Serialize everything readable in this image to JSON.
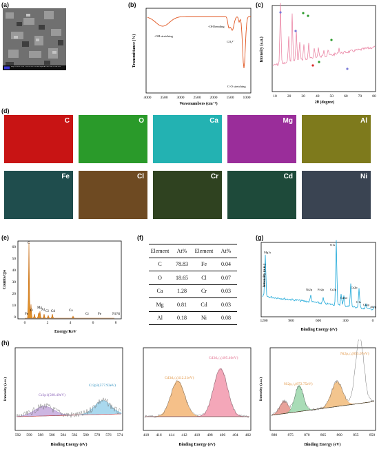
{
  "panels": {
    "a": "(a)",
    "b": "(b)",
    "c": "(c)",
    "d": "(d)",
    "e": "(e)",
    "f": "(f)",
    "g": "(g)",
    "h": "(h)"
  },
  "sem_caption": "Mag = 20.00 K X   EHT = 3.00 kV   WD = 6.8 mm   Signal A = SE2   Date: 30 Jan 2023",
  "ftir": {
    "xlabel": "Wavenumbers (cm⁻¹)",
    "ylabel": "Transmittance (%)",
    "ticks": [
      "4000",
      "3500",
      "3000",
      "2500",
      "2000",
      "1500",
      "1000"
    ],
    "ann_oh_stretch": "-OH stretching",
    "ann_oh_bend": "-OH bending",
    "ann_co3": "CO₃²⁻",
    "ann_co": "C-O stretching"
  },
  "xrd": {
    "xlabel": "2θ (degree)",
    "ylabel": "Intensity (a.u.)",
    "ticks": [
      "10",
      "20",
      "30",
      "40",
      "50",
      "60",
      "70",
      "80"
    ]
  },
  "maps": [
    {
      "label": "C",
      "color": "#c81414"
    },
    {
      "label": "O",
      "color": "#2a9a2a"
    },
    {
      "label": "Ca",
      "color": "#23b2b2"
    },
    {
      "label": "Mg",
      "color": "#9a2d9a"
    },
    {
      "label": "Al",
      "color": "#7e7a1c"
    },
    {
      "label": "Fe",
      "color": "#1f4d4d"
    },
    {
      "label": "Cl",
      "color": "#6e4a22"
    },
    {
      "label": "Cr",
      "color": "#2f4220"
    },
    {
      "label": "Cd",
      "color": "#1e4a3a"
    },
    {
      "label": "Ni",
      "color": "#3a4452"
    }
  ],
  "eds": {
    "xlabel": "Energy/KeV",
    "ylabel": "Counts/cps",
    "xticks": [
      "0",
      "2",
      "4",
      "6",
      "8"
    ],
    "yticks": [
      "0",
      "10",
      "20",
      "30",
      "40",
      "50",
      "60"
    ],
    "peaks": [
      "C",
      "O",
      "Fe",
      "Mg",
      "Al",
      "Cl",
      "Cd",
      "Ca",
      "Cr",
      "Fe",
      "Ni",
      "Ni"
    ]
  },
  "table": {
    "headers": [
      "Element",
      "At%",
      "Element",
      "At%"
    ],
    "rows": [
      [
        "C",
        "78.83",
        "Fe",
        "0.04"
      ],
      [
        "O",
        "18.65",
        "Cl",
        "0.07"
      ],
      [
        "Ca",
        "1.28",
        "Cr",
        "0.03"
      ],
      [
        "Mg",
        "0.81",
        "Cd",
        "0.03"
      ],
      [
        "Al",
        "0.18",
        "Ni",
        "0.08"
      ]
    ]
  },
  "xps_survey": {
    "xlabel": "Binding Energy (eV)",
    "ylabel": "Intensity (a.u.)",
    "ticks": [
      "1200",
      "900",
      "600",
      "300",
      "0"
    ],
    "labels": [
      "Mg1s",
      "O1s",
      "Ni2p",
      "Fe2p",
      "Cr2p",
      "Ca2p",
      "Cd3d",
      "C1s",
      "Cl2p",
      "Al2p"
    ]
  },
  "xps_cr": {
    "xlabel": "Binding Energy (eV)",
    "ylabel": "Intensity (a.u.)",
    "ticks": [
      "592",
      "590",
      "588",
      "586",
      "584",
      "582",
      "580",
      "578",
      "576",
      "574"
    ],
    "peak1": "Cr2p1(588.49eV)",
    "peak2": "Cr2p3(577.93eV)"
  },
  "xps_cd": {
    "xlabel": "Binding Energy (eV)",
    "ticks": [
      "418",
      "416",
      "414",
      "412",
      "410",
      "408",
      "406",
      "404",
      "402"
    ],
    "peak1": "Cd3d₃/₂(412.21eV)",
    "peak2": "Cd3d₅/₂(405.46eV)"
  },
  "xps_ni": {
    "xlabel": "Binding Energy (eV)",
    "ylabel": "Intensity (a.u.)",
    "ticks": [
      "880",
      "875",
      "870",
      "865",
      "860",
      "855",
      "850"
    ],
    "peak1": "Ni2p₁/₂(872.75eV)",
    "peak2": "Ni2p₃/₂(855.07eV)"
  }
}
